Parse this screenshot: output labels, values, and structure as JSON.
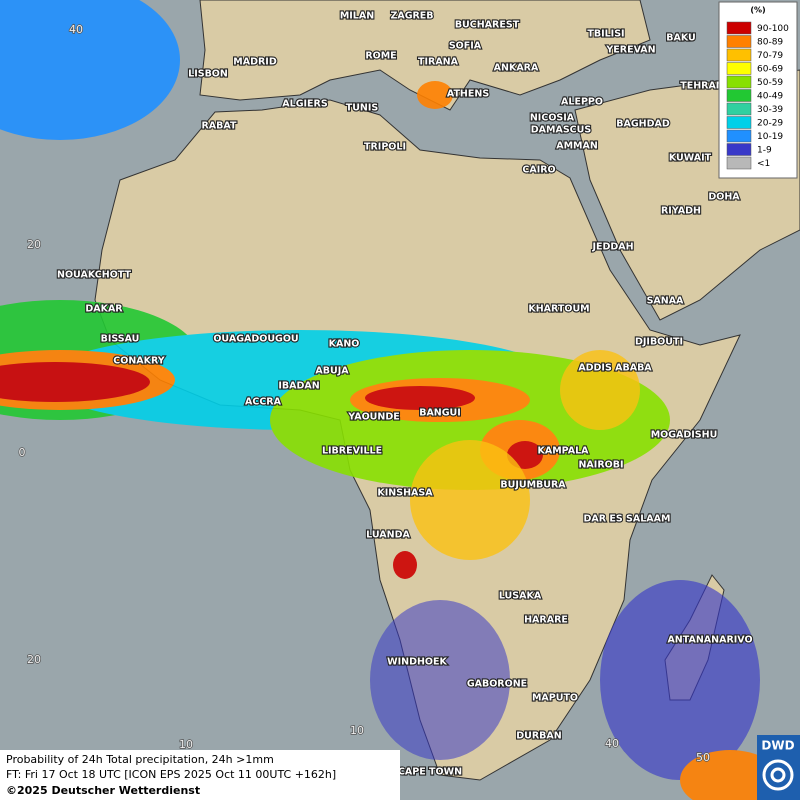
{
  "legend": {
    "title": "(%)",
    "items": [
      {
        "label": "90-100",
        "color": "#cc0000"
      },
      {
        "label": "80-89",
        "color": "#ff8000"
      },
      {
        "label": "70-79",
        "color": "#ffc000"
      },
      {
        "label": "60-69",
        "color": "#ffff00"
      },
      {
        "label": "50-59",
        "color": "#88e000"
      },
      {
        "label": "40-49",
        "color": "#22c833"
      },
      {
        "label": "30-39",
        "color": "#30d0a0"
      },
      {
        "label": "20-29",
        "color": "#00d0e8"
      },
      {
        "label": "10-19",
        "color": "#2090ff"
      },
      {
        "label": "1-9",
        "color": "#3838c8"
      },
      {
        "label": "<1",
        "color": "#b8b8b8"
      }
    ]
  },
  "cities": [
    "MILAN",
    "ZAGREB",
    "BUCHAREST",
    "TBILISI",
    "BAKU",
    "MADRID",
    "ROME",
    "SOFIA",
    "YEREVAN",
    "LISBON",
    "TIRANA",
    "ANKARA",
    "TEHRAN",
    "ATHENS",
    "ALGIERS",
    "TUNIS",
    "ALEPPO",
    "RABAT",
    "NICOSIA",
    "BAGHDAD",
    "DAMASCUS",
    "TRIPOLI",
    "AMMAN",
    "KUWAIT",
    "CAIRO",
    "DOHA",
    "RIYADH",
    "JEDDAH",
    "NOUAKCHOTT",
    "SANAA",
    "DAKAR",
    "KHARTOUM",
    "BISSAU",
    "OUAGADOUGOU",
    "DJIBOUTI",
    "KANO",
    "CONAKRY",
    "ABUJA",
    "ADDIS ABABA",
    "IBADAN",
    "ACCRA",
    "YAOUNDE",
    "BANGUI",
    "MOGADISHU",
    "LIBREVILLE",
    "KAMPALA",
    "NAIROBI",
    "KINSHASA",
    "BUJUMBURA",
    "DAR ES SALAAM",
    "LUANDA",
    "LUSAKA",
    "HARARE",
    "ANTANANARIVO",
    "WINDHOEK",
    "GABORONE",
    "MAPUTO",
    "DURBAN",
    "CAPE TOWN"
  ],
  "grid_labels": [
    "40",
    "20",
    "0",
    "20",
    "10",
    "10",
    "40",
    "50"
  ],
  "caption": {
    "lines": [
      "Probability of 24h Total precipitation, 24h >1mm",
      "FT: Fri 17 Oct 18 UTC [ICON EPS 2025 Oct 11 00UTC +162h]"
    ],
    "copyright": "©2025 Deutscher Wetterdienst"
  },
  "logo": "DWD"
}
